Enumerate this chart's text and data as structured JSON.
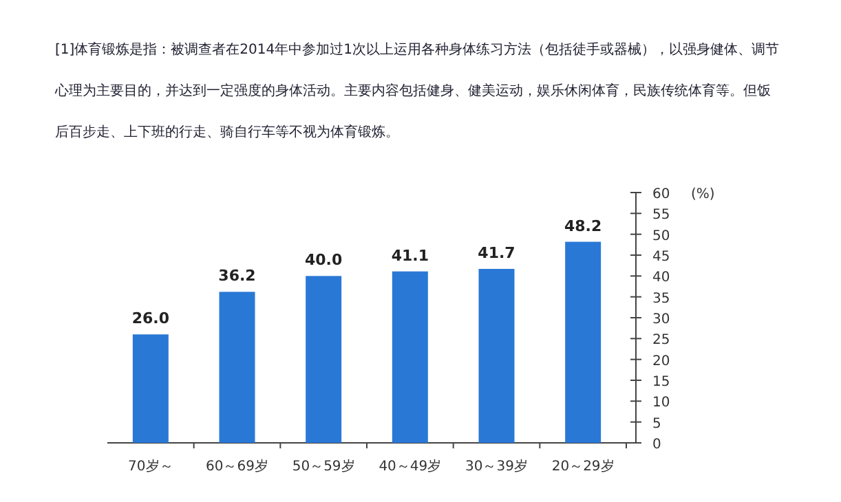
{
  "chart_data": {
    "type": "bar",
    "ylabel": "(%)",
    "annotations": [
      "[1]体育锻炼是指：被调查者在2014年中参加过1次以上运用各种身体练习方法（包括徒手或器械），以强身健体、调节心理为主要目的，并达到一定强度的身体活动。主要内容包括健身、健美运动，娱乐休闲体育，民族传统体育等。但饭后百步走、上下班的行走、骑自行车等不视为体育锻炼。"
    ],
    "categories": [
      "70岁～",
      "60～69岁",
      "50～59岁",
      "40～49岁",
      "30～39岁",
      "20～29岁"
    ],
    "values": [
      26.0,
      36.2,
      40.0,
      41.1,
      41.7,
      48.2
    ],
    "value_labels": [
      "26.0",
      "36.2",
      "40.0",
      "41.1",
      "41.7",
      "48.2"
    ],
    "color": "#2a78d6",
    "ylim": [
      0,
      60
    ],
    "yticks": [
      0,
      5,
      10,
      15,
      20,
      25,
      30,
      35,
      40,
      45,
      50,
      55,
      60
    ],
    "grid": false
  }
}
